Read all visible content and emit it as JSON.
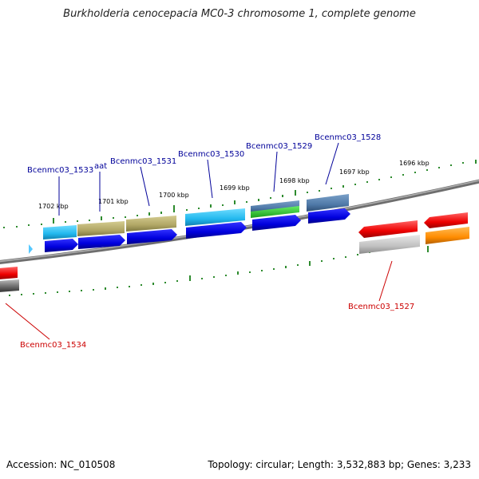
{
  "title": "Burkholderia cenocepacia MC0-3 chromosome 1, complete genome",
  "accession": "Accession: NC_010508",
  "topology": "Topology: circular; Length: 3,532,883 bp; Genes: 3,233",
  "colors": {
    "backbone": "#8a8a8a",
    "tick": "#2e8b2e",
    "forward_label": "#000099",
    "reverse_label": "#cc0000"
  },
  "scale_labels": [
    "1702 kbp",
    "1701 kbp",
    "1700 kbp",
    "1699 kbp",
    "1698 kbp",
    "1697 kbp",
    "1696 kbp"
  ],
  "gene_labels": {
    "forward": [
      "Bcenmc03_1533",
      "aat",
      "Bcenmc03_1531",
      "Bcenmc03_1530",
      "Bcenmc03_1529",
      "Bcenmc03_1528"
    ],
    "reverse": [
      "Bcenmc03_1527",
      "Bcenmc03_1534"
    ]
  }
}
